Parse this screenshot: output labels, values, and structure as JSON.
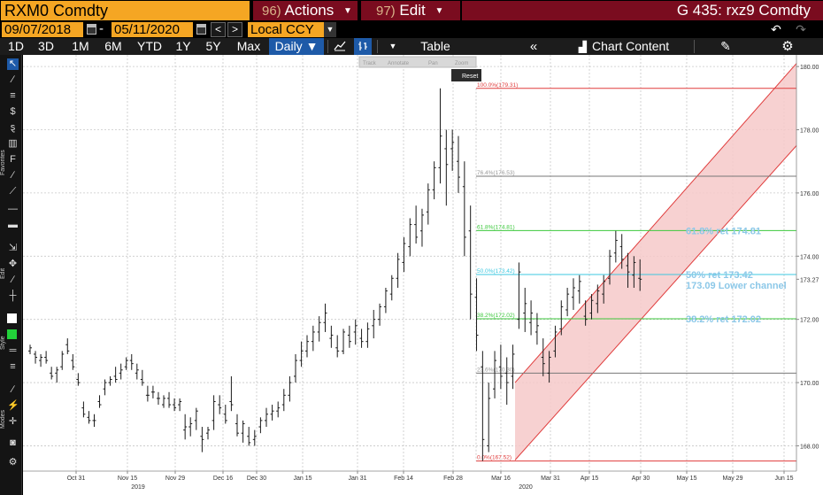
{
  "titlebar": {
    "ticker": "RXM0 Comdty",
    "actions_num": "96)",
    "actions_label": "Actions",
    "edit_num": "97)",
    "edit_label": "Edit",
    "graph_title": "G 435: rxz9 Comdty"
  },
  "daterow": {
    "start_date": "09/07/2018",
    "end_date": "05/11/2020",
    "dash": "-",
    "prev": "<",
    "next": ">",
    "currency": "Local CCY",
    "undo": "↶",
    "redo": "↷"
  },
  "toolbar": {
    "periods": [
      "1D",
      "3D",
      "1M",
      "6M",
      "YTD",
      "1Y",
      "5Y",
      "Max"
    ],
    "interval": "Daily ▼",
    "table_label": "Table",
    "collapse": "«",
    "chart_content_label": "Chart Content",
    "annot": "✎",
    "settings": "⚙"
  },
  "left_strip": {
    "favorites_label": "Favorites",
    "edit_label": "Edit",
    "style_label": "Style",
    "modes_label": "Modes"
  },
  "chart_popup": {
    "items": [
      "Track",
      "Annotate",
      "Pan",
      "Zoom"
    ],
    "reset": "Reset"
  },
  "chart_data": {
    "type": "ohlc",
    "y_ticks": [
      168.0,
      170.0,
      172.0,
      173.27,
      174.0,
      176.0,
      178.0,
      180.0
    ],
    "ylim": [
      167.2,
      180.2
    ],
    "x_ticks": [
      "Oct 31",
      "Nov 15",
      "Nov 29",
      "Dec 16",
      "Dec 30",
      "Jan 15",
      "Jan 31",
      "Feb 14",
      "Feb 28",
      "Mar 16",
      "Mar 31",
      "Apr 15",
      "Apr 30",
      "May 15",
      "May 29",
      "Jun 15"
    ],
    "year_labels": [
      "2019",
      "2020"
    ],
    "last_price": 173.27,
    "fibonacci": [
      {
        "label": "100.0%(179.31)",
        "value": 179.31,
        "color": "#e03c3c"
      },
      {
        "label": "76.4%(176.53)",
        "value": 176.53,
        "color": "#777777"
      },
      {
        "label": "61.8%(174.81)",
        "value": 174.81,
        "color": "#3cc83c"
      },
      {
        "label": "50.0%(173.42)",
        "value": 173.42,
        "color": "#3cc8e0"
      },
      {
        "label": "38.2%(172.02)",
        "value": 172.02,
        "color": "#3cc83c"
      },
      {
        "label": "23.6%(170.30)",
        "value": 170.3,
        "color": "#777777"
      },
      {
        "label": "0.0%(167.52)",
        "value": 167.52,
        "color": "#e03c3c"
      }
    ],
    "annotations": [
      {
        "text": "61.8% ret 174.81",
        "value": 174.81
      },
      {
        "text": "50% ret 173.42",
        "value": 173.42
      },
      {
        "text": "173.09 Lower channel",
        "value": 173.09
      },
      {
        "text": "38.2% ret 172.02",
        "value": 172.02
      }
    ],
    "channel": {
      "lower_start": [
        102,
        167.55
      ],
      "lower_end": [
        206,
        177.5
      ],
      "upper_start": [
        102,
        170.0
      ],
      "upper_end": [
        206,
        180.1
      ]
    },
    "ohlc": [
      [
        0,
        171.0,
        171.2,
        170.9,
        171.1
      ],
      [
        2,
        170.9,
        171.0,
        170.6,
        170.8
      ],
      [
        4,
        170.7,
        170.9,
        170.5,
        170.8
      ],
      [
        6,
        170.8,
        171.0,
        170.6,
        170.7
      ],
      [
        8,
        170.3,
        170.5,
        170.1,
        170.2
      ],
      [
        10,
        170.3,
        170.5,
        170.0,
        170.4
      ],
      [
        12,
        170.5,
        171.0,
        170.4,
        170.9
      ],
      [
        14,
        171.2,
        171.4,
        170.9,
        171.0
      ],
      [
        16,
        170.7,
        170.9,
        170.4,
        170.5
      ],
      [
        18,
        170.1,
        170.3,
        169.9,
        170.0
      ],
      [
        20,
        169.2,
        169.4,
        168.9,
        169.0
      ],
      [
        22,
        168.9,
        169.1,
        168.7,
        168.8
      ],
      [
        24,
        168.8,
        169.0,
        168.6,
        168.8
      ],
      [
        26,
        169.4,
        169.6,
        169.2,
        169.3
      ],
      [
        28,
        169.8,
        170.1,
        169.6,
        170.0
      ],
      [
        30,
        170.0,
        170.2,
        169.9,
        170.1
      ],
      [
        32,
        170.2,
        170.5,
        170.0,
        170.1
      ],
      [
        34,
        170.3,
        170.6,
        170.1,
        170.4
      ],
      [
        36,
        170.5,
        170.8,
        170.4,
        170.7
      ],
      [
        38,
        170.7,
        170.9,
        170.4,
        170.6
      ],
      [
        40,
        170.3,
        170.6,
        170.1,
        170.4
      ],
      [
        42,
        170.1,
        170.4,
        169.9,
        170.0
      ],
      [
        44,
        169.6,
        169.9,
        169.4,
        169.6
      ],
      [
        46,
        169.7,
        169.9,
        169.5,
        169.7
      ],
      [
        48,
        169.5,
        169.7,
        169.3,
        169.5
      ],
      [
        50,
        169.3,
        169.6,
        169.2,
        169.5
      ],
      [
        52,
        169.5,
        169.7,
        169.2,
        169.3
      ],
      [
        54,
        169.3,
        169.5,
        169.1,
        169.2
      ],
      [
        56,
        169.3,
        169.5,
        169.1,
        169.4
      ],
      [
        58,
        168.5,
        169.0,
        168.2,
        168.6
      ],
      [
        60,
        168.6,
        168.9,
        168.3,
        168.7
      ],
      [
        62,
        168.8,
        169.2,
        168.5,
        169.1
      ],
      [
        64,
        168.3,
        168.6,
        167.8,
        168.2
      ],
      [
        66,
        168.4,
        168.6,
        168.2,
        168.5
      ],
      [
        68,
        168.8,
        169.6,
        168.5,
        169.4
      ],
      [
        70,
        169.3,
        169.6,
        169.0,
        169.2
      ],
      [
        72,
        169.0,
        169.3,
        168.7,
        168.8
      ],
      [
        74,
        169.4,
        170.2,
        169.1,
        169.3
      ],
      [
        76,
        168.7,
        169.0,
        168.3,
        168.4
      ],
      [
        78,
        168.4,
        168.8,
        168.1,
        168.7
      ],
      [
        80,
        168.3,
        168.6,
        168.0,
        168.1
      ],
      [
        82,
        168.2,
        168.5,
        168.0,
        168.3
      ],
      [
        84,
        168.6,
        168.9,
        168.4,
        168.8
      ],
      [
        86,
        168.8,
        169.2,
        168.6,
        169.0
      ],
      [
        88,
        169.0,
        169.3,
        168.8,
        169.1
      ],
      [
        90,
        169.1,
        169.4,
        168.9,
        169.2
      ],
      [
        92,
        169.3,
        169.8,
        169.1,
        169.6
      ],
      [
        94,
        169.6,
        170.2,
        169.4,
        170.0
      ],
      [
        96,
        170.2,
        170.9,
        170.0,
        170.7
      ],
      [
        98,
        170.7,
        171.3,
        170.5,
        171.0
      ],
      [
        100,
        171.0,
        171.5,
        170.8,
        171.3
      ],
      [
        102,
        171.3,
        171.8,
        171.0,
        171.6
      ],
      [
        104,
        171.6,
        172.1,
        171.3,
        171.9
      ],
      [
        106,
        171.9,
        172.5,
        171.6,
        172.2
      ],
      [
        108,
        171.4,
        171.8,
        171.1,
        171.5
      ],
      [
        110,
        171.1,
        171.5,
        170.8,
        171.0
      ],
      [
        112,
        171.0,
        171.7,
        170.9,
        171.6
      ],
      [
        114,
        171.5,
        171.8,
        171.1,
        171.3
      ],
      [
        116,
        171.6,
        172.0,
        171.2,
        171.8
      ],
      [
        118,
        171.4,
        171.7,
        171.1,
        171.3
      ],
      [
        120,
        171.3,
        171.9,
        171.1,
        171.7
      ],
      [
        122,
        171.8,
        172.3,
        171.4,
        172.0
      ],
      [
        124,
        172.0,
        172.5,
        171.8,
        172.4
      ],
      [
        126,
        172.4,
        173.0,
        172.2,
        172.9
      ],
      [
        128,
        172.8,
        173.4,
        172.6,
        173.3
      ],
      [
        130,
        173.3,
        174.1,
        173.0,
        173.9
      ],
      [
        132,
        173.8,
        174.6,
        173.5,
        174.4
      ],
      [
        134,
        174.3,
        175.2,
        174.0,
        175.0
      ],
      [
        136,
        175.0,
        175.6,
        174.4,
        174.6
      ],
      [
        138,
        174.8,
        175.5,
        174.3,
        175.3
      ],
      [
        140,
        175.4,
        176.3,
        175.0,
        176.1
      ],
      [
        142,
        176.1,
        177.0,
        175.8,
        176.8
      ],
      [
        144,
        176.8,
        179.31,
        176.3,
        177.8
      ],
      [
        146,
        177.4,
        178.0,
        175.6,
        176.9
      ],
      [
        148,
        177.4,
        178.0,
        176.7,
        177.6
      ],
      [
        150,
        177.0,
        177.8,
        176.0,
        176.5
      ],
      [
        152,
        176.2,
        177.0,
        174.0,
        174.6
      ],
      [
        154,
        174.8,
        175.6,
        172.0,
        172.8
      ],
      [
        156,
        172.7,
        173.3,
        171.0,
        171.5
      ],
      [
        158,
        170.5,
        171.0,
        167.52,
        168.2
      ],
      [
        160,
        168.0,
        170.0,
        167.8,
        169.5
      ],
      [
        162,
        169.8,
        171.0,
        169.5,
        170.7
      ],
      [
        164,
        170.5,
        171.2,
        169.8,
        170.2
      ],
      [
        166,
        170.3,
        170.8,
        169.3,
        170.0
      ],
      [
        168,
        170.2,
        171.2,
        169.8,
        170.9
      ],
      [
        170,
        172.0,
        173.8,
        171.7,
        173.5
      ],
      [
        172,
        172.2,
        173.0,
        171.6,
        172.5
      ],
      [
        174,
        171.9,
        172.6,
        171.5,
        172.2
      ],
      [
        176,
        171.6,
        172.2,
        171.2,
        171.8
      ],
      [
        178,
        170.8,
        171.4,
        170.2,
        170.6
      ],
      [
        180,
        170.3,
        171.0,
        170.0,
        170.8
      ],
      [
        182,
        171.0,
        171.8,
        170.8,
        171.6
      ],
      [
        184,
        171.7,
        172.6,
        171.5,
        172.4
      ],
      [
        186,
        172.3,
        173.0,
        172.1,
        172.8
      ],
      [
        188,
        172.7,
        173.3,
        172.3,
        173.0
      ],
      [
        190,
        172.9,
        173.4,
        172.5,
        173.2
      ],
      [
        192,
        172.1,
        172.6,
        171.8,
        172.0
      ],
      [
        194,
        172.2,
        172.8,
        172.0,
        172.6
      ],
      [
        196,
        172.5,
        173.1,
        172.2,
        172.9
      ],
      [
        198,
        172.8,
        173.4,
        172.5,
        173.2
      ],
      [
        200,
        173.3,
        174.2,
        173.1,
        174.0
      ],
      [
        202,
        174.1,
        174.8,
        173.8,
        174.5
      ],
      [
        204,
        174.3,
        174.7,
        173.6,
        173.9
      ],
      [
        206,
        173.7,
        174.1,
        173.0,
        173.5
      ],
      [
        208,
        173.4,
        174.0,
        173.0,
        173.8
      ],
      [
        210,
        173.3,
        173.9,
        172.9,
        173.27
      ]
    ]
  }
}
